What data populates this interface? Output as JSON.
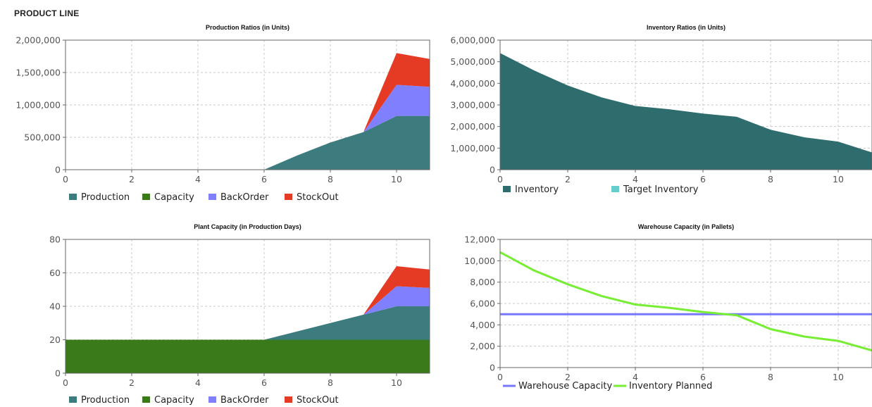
{
  "page": {
    "title": "PRODUCT LINE"
  },
  "colors": {
    "production": "#3d7c7e",
    "capacity": "#3a7a1a",
    "backorder": "#8080ff",
    "stockout": "#e53b24",
    "inventory": "#2e6c6e",
    "target_inventory": "#66cccc",
    "warehouse_capacity": "#7777ff",
    "inventory_planned": "#77ee33"
  },
  "chart_data": [
    {
      "id": "production",
      "type": "area",
      "title": "Production Ratios (in Units)",
      "xlim": [
        0,
        11
      ],
      "ylim": [
        0,
        2000000
      ],
      "xticks": [
        0,
        2,
        4,
        6,
        8,
        10
      ],
      "yticks": [
        0,
        500000,
        1000000,
        1500000,
        2000000
      ],
      "ytick_labels": [
        "0",
        "500,000",
        "1,000,000",
        "1,500,000",
        "2,000,000"
      ],
      "x": [
        0,
        1,
        2,
        3,
        4,
        5,
        6,
        7,
        8,
        9,
        10,
        11
      ],
      "series": [
        {
          "name": "Production",
          "color_key": "production",
          "values": [
            0,
            0,
            0,
            0,
            0,
            0,
            0,
            220000,
            420000,
            580000,
            830000,
            830000
          ]
        },
        {
          "name": "Capacity",
          "color_key": "capacity",
          "values": [
            0,
            0,
            0,
            0,
            0,
            0,
            0,
            0,
            0,
            0,
            0,
            0
          ]
        },
        {
          "name": "BackOrder",
          "color_key": "backorder",
          "values": [
            0,
            0,
            0,
            0,
            0,
            0,
            0,
            0,
            0,
            0,
            480000,
            450000
          ]
        },
        {
          "name": "StockOut",
          "color_key": "stockout",
          "values": [
            0,
            0,
            0,
            0,
            0,
            0,
            0,
            0,
            0,
            0,
            490000,
            430000
          ]
        }
      ],
      "legend": [
        {
          "label": "Production",
          "color_key": "production"
        },
        {
          "label": "Capacity",
          "color_key": "capacity"
        },
        {
          "label": "BackOrder",
          "color_key": "backorder"
        },
        {
          "label": "StockOut",
          "color_key": "stockout"
        }
      ]
    },
    {
      "id": "inventory",
      "type": "area",
      "title": "Inventory Ratios (in Units)",
      "xlim": [
        0,
        11
      ],
      "ylim": [
        0,
        6000000
      ],
      "xticks": [
        0,
        2,
        4,
        6,
        8,
        10
      ],
      "yticks": [
        0,
        1000000,
        2000000,
        3000000,
        4000000,
        5000000,
        6000000
      ],
      "ytick_labels": [
        "0",
        "1,000,000",
        "2,000,000",
        "3,000,000",
        "4,000,000",
        "5,000,000",
        "6,000,000"
      ],
      "x": [
        0,
        1,
        2,
        3,
        4,
        5,
        6,
        7,
        8,
        9,
        10,
        11
      ],
      "series": [
        {
          "name": "Inventory",
          "color_key": "inventory",
          "values": [
            5400000,
            4600000,
            3900000,
            3350000,
            2950000,
            2800000,
            2600000,
            2450000,
            1850000,
            1500000,
            1300000,
            800000
          ]
        }
      ],
      "legend": [
        {
          "label": "Inventory",
          "color_key": "inventory"
        },
        {
          "label": "Target Inventory",
          "color_key": "target_inventory"
        }
      ]
    },
    {
      "id": "plant",
      "type": "area",
      "title": "Plant Capacity (in Production Days)",
      "xlim": [
        0,
        11
      ],
      "ylim": [
        0,
        80
      ],
      "xticks": [
        0,
        2,
        4,
        6,
        8,
        10
      ],
      "yticks": [
        0,
        20,
        40,
        60,
        80
      ],
      "ytick_labels": [
        "0",
        "20",
        "40",
        "60",
        "80"
      ],
      "x": [
        0,
        1,
        2,
        3,
        4,
        5,
        6,
        7,
        8,
        9,
        10,
        11
      ],
      "series": [
        {
          "name": "Capacity",
          "color_key": "capacity",
          "values": [
            20,
            20,
            20,
            20,
            20,
            20,
            20,
            20,
            20,
            20,
            20,
            20
          ]
        },
        {
          "name": "Production",
          "color_key": "production",
          "values": [
            0,
            0,
            0,
            0,
            0,
            0,
            0,
            5,
            10,
            15,
            20,
            20
          ]
        },
        {
          "name": "BackOrder",
          "color_key": "backorder",
          "values": [
            0,
            0,
            0,
            0,
            0,
            0,
            0,
            0,
            0,
            0,
            12,
            11
          ]
        },
        {
          "name": "StockOut",
          "color_key": "stockout",
          "values": [
            0,
            0,
            0,
            0,
            0,
            0,
            0,
            0,
            0,
            0,
            12,
            11
          ]
        }
      ],
      "legend": [
        {
          "label": "Production",
          "color_key": "production"
        },
        {
          "label": "Capacity",
          "color_key": "capacity"
        },
        {
          "label": "BackOrder",
          "color_key": "backorder"
        },
        {
          "label": "StockOut",
          "color_key": "stockout"
        }
      ]
    },
    {
      "id": "warehouse",
      "type": "line",
      "title": "Warehouse Capacity (in Pallets)",
      "xlim": [
        0,
        11
      ],
      "ylim": [
        0,
        12000
      ],
      "xticks": [
        0,
        2,
        4,
        6,
        8,
        10
      ],
      "yticks": [
        0,
        2000,
        4000,
        6000,
        8000,
        10000,
        12000
      ],
      "ytick_labels": [
        "0",
        "2,000",
        "4,000",
        "6,000",
        "8,000",
        "10,000",
        "12,000"
      ],
      "x": [
        0,
        1,
        2,
        3,
        4,
        5,
        6,
        7,
        8,
        9,
        10,
        11
      ],
      "series": [
        {
          "name": "Warehouse Capacity",
          "color_key": "warehouse_capacity",
          "values": [
            5000,
            5000,
            5000,
            5000,
            5000,
            5000,
            5000,
            5000,
            5000,
            5000,
            5000,
            5000
          ]
        },
        {
          "name": "Inventory Planned",
          "color_key": "inventory_planned",
          "values": [
            10800,
            9100,
            7800,
            6700,
            5900,
            5600,
            5200,
            4900,
            3600,
            2900,
            2500,
            1600
          ]
        }
      ],
      "legend": [
        {
          "label": "Warehouse Capacity",
          "color_key": "warehouse_capacity",
          "style": "line"
        },
        {
          "label": "Inventory Planned",
          "color_key": "inventory_planned",
          "style": "line"
        }
      ]
    }
  ]
}
